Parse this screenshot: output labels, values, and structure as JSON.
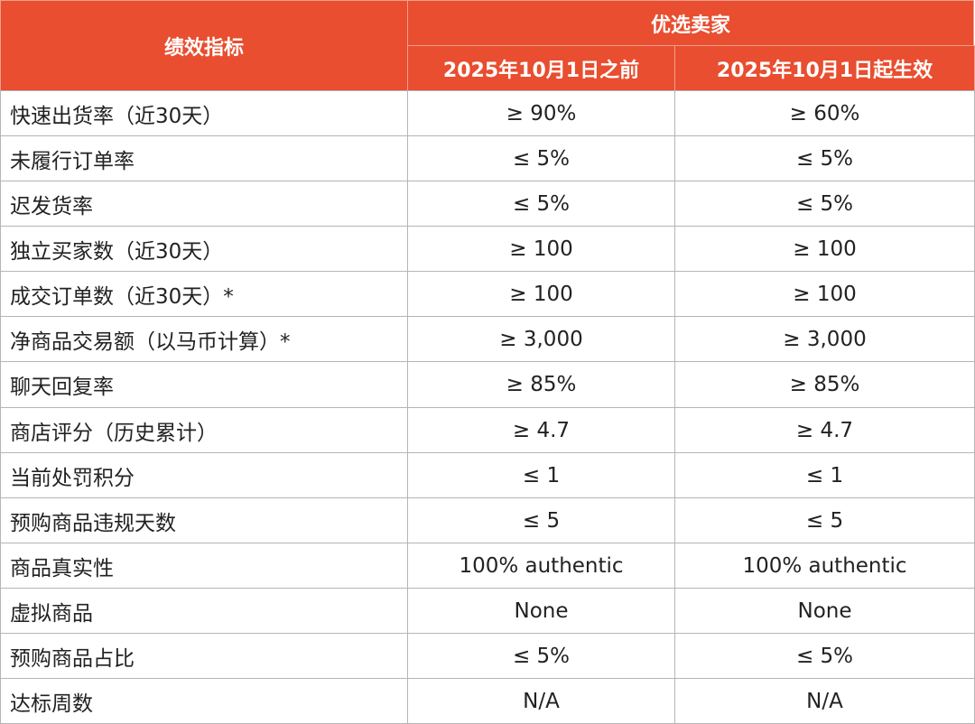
{
  "header": {
    "metric": "绩效指标",
    "group": "优选卖家",
    "columns": [
      "2025年10月1日之前",
      "2025年10月1日起生效"
    ]
  },
  "table": {
    "rows": [
      [
        "快速出货率（近30天）",
        "≥ 90%",
        "≥ 60%"
      ],
      [
        "未履行订单率",
        "≤ 5%",
        "≤ 5%"
      ],
      [
        "迟发货率",
        "≤ 5%",
        "≤ 5%"
      ],
      [
        "独立买家数（近30天）",
        "≥ 100",
        "≥ 100"
      ],
      [
        "成交订单数（近30天）*",
        "≥ 100",
        "≥ 100"
      ],
      [
        "净商品交易额（以马币计算）*",
        "≥ 3,000",
        "≥ 3,000"
      ],
      [
        "聊天回复率",
        "≥ 85%",
        "≥ 85%"
      ],
      [
        "商店评分（历史累计）",
        "≥ 4.7",
        "≥ 4.7"
      ],
      [
        "当前处罚积分",
        "≤ 1",
        "≤ 1"
      ],
      [
        "预购商品违规天数",
        "≤ 5",
        "≤ 5"
      ],
      [
        "商品真实性",
        "100% authentic",
        "100% authentic"
      ],
      [
        "虚拟商品",
        "None",
        "None"
      ],
      [
        "预购商品占比",
        "≤ 5%",
        "≤ 5%"
      ],
      [
        "达标周数",
        "N/A",
        "N/A"
      ]
    ]
  }
}
